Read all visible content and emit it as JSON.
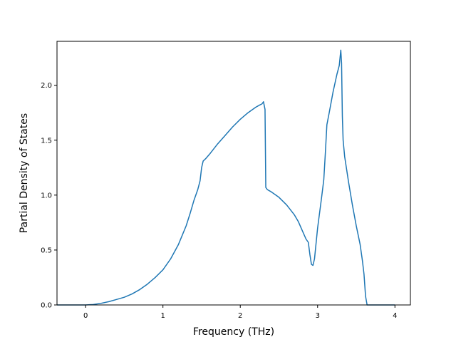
{
  "chart_data": {
    "type": "line",
    "title": "",
    "xlabel": "Frequency (THz)",
    "ylabel": "Partial Density of States",
    "xlim": [
      -0.37,
      4.2
    ],
    "ylim": [
      0.0,
      2.4
    ],
    "xticks": [
      0,
      1,
      2,
      3,
      4
    ],
    "xtick_labels": [
      "0",
      "1",
      "2",
      "3",
      "4"
    ],
    "yticks": [
      0.0,
      0.5,
      1.0,
      1.5,
      2.0
    ],
    "ytick_labels": [
      "0.0",
      "0.5",
      "1.0",
      "1.5",
      "2.0"
    ],
    "grid": false,
    "legend": "none",
    "series": [
      {
        "color": "#1f77b4",
        "x": [
          -0.37,
          -0.1,
          0.0,
          0.1,
          0.2,
          0.3,
          0.4,
          0.5,
          0.6,
          0.7,
          0.8,
          0.9,
          1.0,
          1.1,
          1.2,
          1.3,
          1.35,
          1.4,
          1.45,
          1.48,
          1.5,
          1.51,
          1.52,
          1.55,
          1.6,
          1.7,
          1.8,
          1.9,
          2.0,
          2.1,
          2.2,
          2.25,
          2.28,
          2.3,
          2.32,
          2.33,
          2.35,
          2.4,
          2.5,
          2.6,
          2.7,
          2.75,
          2.8,
          2.85,
          2.88,
          2.9,
          2.92,
          2.94,
          2.96,
          3.0,
          3.05,
          3.08,
          3.1,
          3.12,
          3.15,
          3.2,
          3.25,
          3.28,
          3.3,
          3.31,
          3.32,
          3.33,
          3.35,
          3.4,
          3.45,
          3.5,
          3.55,
          3.58,
          3.6,
          3.62,
          3.64,
          4.0
        ],
        "y": [
          0.0,
          0.0,
          0.0,
          0.004,
          0.015,
          0.03,
          0.05,
          0.07,
          0.1,
          0.14,
          0.19,
          0.25,
          0.32,
          0.42,
          0.55,
          0.72,
          0.83,
          0.95,
          1.05,
          1.13,
          1.25,
          1.28,
          1.31,
          1.33,
          1.37,
          1.46,
          1.54,
          1.62,
          1.69,
          1.75,
          1.8,
          1.82,
          1.83,
          1.85,
          1.78,
          1.07,
          1.05,
          1.03,
          0.98,
          0.91,
          0.82,
          0.76,
          0.68,
          0.6,
          0.57,
          0.46,
          0.37,
          0.36,
          0.42,
          0.7,
          0.97,
          1.14,
          1.38,
          1.64,
          1.75,
          1.94,
          2.1,
          2.18,
          2.32,
          2.2,
          1.72,
          1.5,
          1.35,
          1.12,
          0.91,
          0.72,
          0.55,
          0.4,
          0.28,
          0.08,
          0.0,
          0.0
        ]
      }
    ]
  }
}
